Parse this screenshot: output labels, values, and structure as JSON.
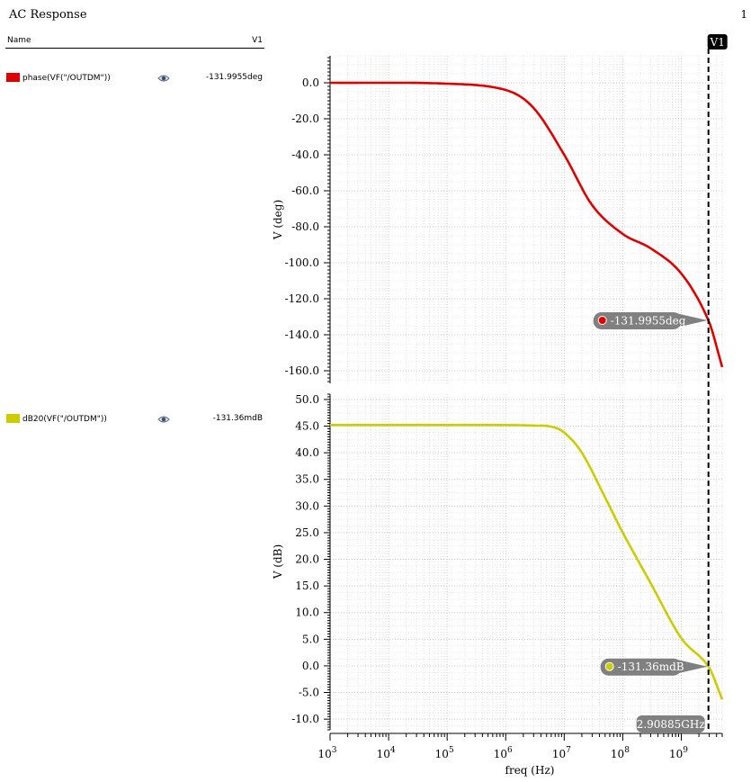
{
  "window": {
    "title": "AC Response",
    "page_number": "1"
  },
  "legend": {
    "header_name": "Name",
    "header_cursor": "V1",
    "signals": [
      {
        "name": "phase(VF(\"/OUTDM\"))",
        "color": "#e00000",
        "visibility_icon": "eye-icon",
        "cursor_value": "-131.9955deg"
      },
      {
        "name": "dB20(VF(\"/OUTDM\"))",
        "color": "#cccc00",
        "visibility_icon": "eye-icon",
        "cursor_value": "-131.36mdB"
      }
    ]
  },
  "cursor": {
    "label": "V1",
    "freq_label": "2.90885GHz",
    "freq_hz": 2908850000
  },
  "chart_data": [
    {
      "type": "line",
      "x_scale": "log",
      "ylabel": "V (deg)",
      "xlim": [
        1000,
        5000000000
      ],
      "ylim": [
        -167,
        15
      ],
      "yticks": [
        0,
        -20,
        -40,
        -60,
        -80,
        -100,
        -120,
        -140,
        -160
      ],
      "ytick_labels": [
        "0.0",
        "-20.0",
        "-40.0",
        "-60.0",
        "-80.0",
        "-100.0",
        "-120.0",
        "-140.0",
        "-160.0"
      ],
      "grid": true,
      "series": [
        {
          "name": "phase(VF(\"/OUTDM\"))",
          "color": "#e00000",
          "x": [
            1000,
            100000,
            1000000,
            3000000,
            10000000,
            30000000,
            100000000,
            300000000,
            1000000000,
            2908850000,
            5000000000
          ],
          "y": [
            0,
            -0.5,
            -4,
            -14,
            -40,
            -68,
            -84,
            -92,
            -106,
            -131.9955,
            -158
          ]
        }
      ],
      "callout": {
        "text": "-131.9955deg",
        "x": 2908850000,
        "y": -131.9955
      }
    },
    {
      "type": "line",
      "x_scale": "log",
      "xlabel": "freq (Hz)",
      "ylabel": "V (dB)",
      "xlim": [
        1000,
        5000000000
      ],
      "ylim": [
        -12,
        51
      ],
      "yticks": [
        50,
        45,
        40,
        35,
        30,
        25,
        20,
        15,
        10,
        5,
        0,
        -5,
        -10
      ],
      "ytick_labels": [
        "50.0",
        "45.0",
        "40.0",
        "35.0",
        "30.0",
        "25.0",
        "20.0",
        "15.0",
        "10.0",
        "5.0",
        "0.0",
        "-5.0",
        "-10.0"
      ],
      "xticks": [
        1000,
        10000,
        100000,
        1000000,
        10000000,
        100000000,
        1000000000
      ],
      "xtick_exponents": [
        "3",
        "4",
        "5",
        "6",
        "7",
        "8",
        "9"
      ],
      "grid": true,
      "series": [
        {
          "name": "dB20(VF(\"/OUTDM\"))",
          "color": "#cccc00",
          "x": [
            1000,
            1000000,
            3000000,
            6000000,
            10000000,
            20000000,
            50000000,
            100000000,
            300000000,
            1000000000,
            2908850000,
            5000000000
          ],
          "y": [
            45.2,
            45.2,
            45.1,
            44.9,
            43.8,
            40,
            31.6,
            25,
            15.5,
            5.2,
            -0.13,
            -6.3
          ]
        }
      ],
      "callout": {
        "text": "-131.36mdB",
        "x": 2908850000,
        "y": -0.13
      }
    }
  ]
}
